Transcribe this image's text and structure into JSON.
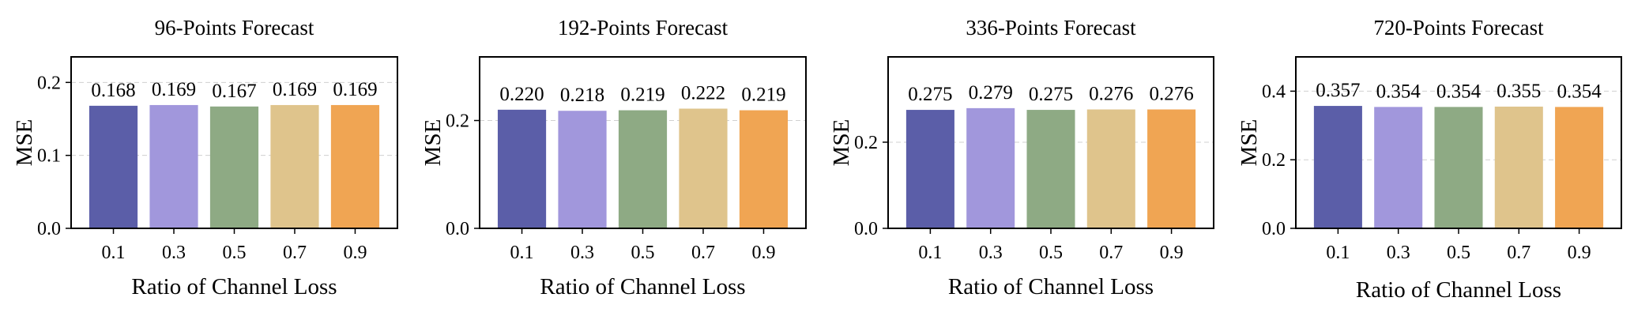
{
  "colors": [
    "#5b5ea8",
    "#a197dc",
    "#8eaa84",
    "#dfc48c",
    "#f0a553"
  ],
  "chart_data": [
    {
      "type": "bar",
      "title": "96-Points Forecast",
      "xlabel": "Ratio of Channel Loss",
      "ylabel": "MSE",
      "categories": [
        "0.1",
        "0.3",
        "0.5",
        "0.7",
        "0.9"
      ],
      "values": [
        0.168,
        0.169,
        0.167,
        0.169,
        0.169
      ],
      "value_labels": [
        "0.168",
        "0.169",
        "0.167",
        "0.169",
        "0.169"
      ],
      "ylim": [
        0,
        0.235
      ],
      "yticks": [
        0.0,
        0.1,
        0.2
      ],
      "ytick_labels": [
        "0.0",
        "0.1",
        "0.2"
      ],
      "grid": true
    },
    {
      "type": "bar",
      "title": "192-Points Forecast",
      "xlabel": "Ratio of Channel Loss",
      "ylabel": "MSE",
      "categories": [
        "0.1",
        "0.3",
        "0.5",
        "0.7",
        "0.9"
      ],
      "values": [
        0.22,
        0.218,
        0.219,
        0.222,
        0.219
      ],
      "value_labels": [
        "0.220",
        "0.218",
        "0.219",
        "0.222",
        "0.219"
      ],
      "ylim": [
        0,
        0.318
      ],
      "yticks": [
        0.0,
        0.2
      ],
      "ytick_labels": [
        "0.0",
        "0.2"
      ],
      "grid": true
    },
    {
      "type": "bar",
      "title": "336-Points Forecast",
      "xlabel": "Ratio of Channel Loss",
      "ylabel": "MSE",
      "categories": [
        "0.1",
        "0.3",
        "0.5",
        "0.7",
        "0.9"
      ],
      "values": [
        0.275,
        0.279,
        0.275,
        0.276,
        0.276
      ],
      "value_labels": [
        "0.275",
        "0.279",
        "0.275",
        "0.276",
        "0.276"
      ],
      "ylim": [
        0,
        0.398
      ],
      "yticks": [
        0.0,
        0.2
      ],
      "ytick_labels": [
        "0.0",
        "0.2"
      ],
      "grid": true
    },
    {
      "type": "bar",
      "title": "720-Points Forecast",
      "xlabel": "Ratio of Channel Loss",
      "ylabel": "MSE",
      "categories": [
        "0.1",
        "0.3",
        "0.5",
        "0.7",
        "0.9"
      ],
      "values": [
        0.357,
        0.354,
        0.354,
        0.355,
        0.354
      ],
      "value_labels": [
        "0.357",
        "0.354",
        "0.354",
        "0.355",
        "0.354"
      ],
      "ylim": [
        0,
        0.5
      ],
      "yticks": [
        0.0,
        0.2,
        0.4
      ],
      "ytick_labels": [
        "0.0",
        "0.2",
        "0.4"
      ],
      "grid": true
    }
  ]
}
